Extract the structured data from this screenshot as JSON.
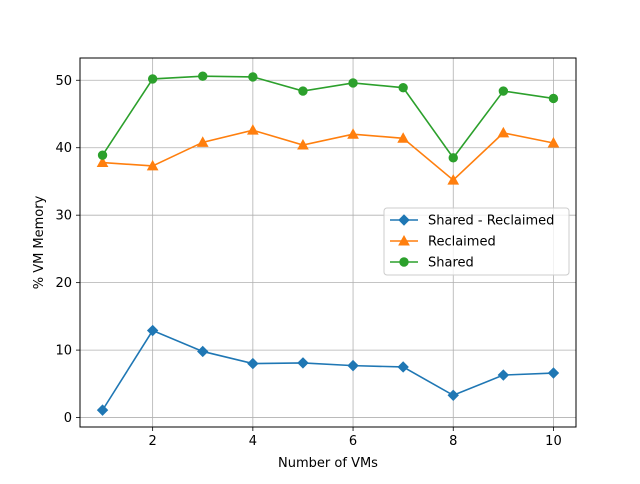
{
  "chart_data": {
    "type": "line",
    "title": "",
    "xlabel": "Number of VMs",
    "ylabel": "% VM Memory",
    "x": [
      1,
      2,
      3,
      4,
      5,
      6,
      7,
      8,
      9,
      10
    ],
    "xlim": [
      0.55,
      10.45
    ],
    "ylim": [
      -1.4,
      53.3
    ],
    "xticks": [
      2,
      4,
      6,
      8,
      10
    ],
    "yticks": [
      0,
      10,
      20,
      30,
      40,
      50
    ],
    "grid": true,
    "legend_position": "center-right",
    "series": [
      {
        "name": "Shared - Reclaimed",
        "color": "#1f77b4",
        "marker": "diamond",
        "values": [
          1.1,
          12.9,
          9.8,
          8.0,
          8.1,
          7.7,
          7.5,
          3.3,
          6.3,
          6.6
        ]
      },
      {
        "name": "Reclaimed",
        "color": "#ff7f0e",
        "marker": "triangle-up",
        "values": [
          37.8,
          37.3,
          40.8,
          42.6,
          40.4,
          42.0,
          41.4,
          35.2,
          42.2,
          40.7
        ]
      },
      {
        "name": "Shared",
        "color": "#2ca02c",
        "marker": "circle",
        "values": [
          38.9,
          50.2,
          50.6,
          50.5,
          48.4,
          49.6,
          48.9,
          38.5,
          48.4,
          47.3
        ]
      }
    ]
  }
}
